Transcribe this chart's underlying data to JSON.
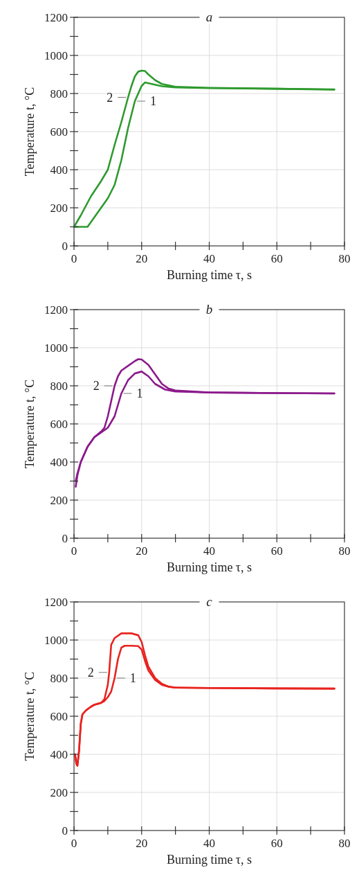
{
  "chart_data": [
    {
      "type": "line",
      "title": "a",
      "xlabel": "Burning time τ, s",
      "ylabel": "Temperature t, °C",
      "xlim": [
        0,
        80
      ],
      "ylim": [
        0,
        1200
      ],
      "xticks": [
        0,
        {
          "value": 10,
          "label": null
        },
        20,
        {
          "value": 30,
          "label": null
        },
        40,
        {
          "value": 50,
          "label": null
        },
        60,
        {
          "value": 70,
          "label": null
        },
        80
      ],
      "yticks": [
        0,
        {
          "value": 100,
          "label": null
        },
        200,
        {
          "value": 300,
          "label": null
        },
        400,
        {
          "value": 500,
          "label": null
        },
        600,
        {
          "value": 700,
          "label": null
        },
        800,
        {
          "value": 900,
          "label": null
        },
        1000,
        {
          "value": 1100,
          "label": null
        },
        1200
      ],
      "grid": true,
      "line_style": "solid",
      "series": [
        {
          "name": "1",
          "color": "#2e9a2e",
          "x": [
            0,
            2,
            4,
            6,
            8,
            10,
            12,
            14,
            16,
            18,
            20,
            21,
            23,
            26,
            30,
            40,
            60,
            77
          ],
          "values": [
            100,
            100,
            100,
            150,
            200,
            250,
            320,
            450,
            620,
            760,
            840,
            858,
            850,
            838,
            832,
            828,
            825,
            820
          ]
        },
        {
          "name": "2",
          "color": "#2e9a2e",
          "x": [
            0,
            2,
            5,
            8,
            10,
            12,
            14,
            16,
            17,
            18,
            19,
            20,
            21,
            22,
            24,
            26,
            30,
            40,
            60,
            77
          ],
          "values": [
            100,
            160,
            260,
            340,
            400,
            530,
            650,
            780,
            840,
            890,
            915,
            920,
            918,
            900,
            870,
            850,
            835,
            830,
            825,
            822
          ]
        }
      ]
    },
    {
      "type": "line",
      "title": "b",
      "xlabel": "Burning time τ, s",
      "ylabel": "Temperature t, °C",
      "xlim": [
        0,
        80
      ],
      "ylim": [
        0,
        1200
      ],
      "xticks": [
        0,
        {
          "value": 10,
          "label": null
        },
        20,
        {
          "value": 30,
          "label": null
        },
        40,
        {
          "value": 50,
          "label": null
        },
        60,
        {
          "value": 70,
          "label": null
        },
        80
      ],
      "yticks": [
        0,
        {
          "value": 100,
          "label": null
        },
        200,
        {
          "value": 300,
          "label": null
        },
        400,
        {
          "value": 500,
          "label": null
        },
        600,
        {
          "value": 700,
          "label": null
        },
        800,
        {
          "value": 900,
          "label": null
        },
        1000,
        {
          "value": 1100,
          "label": null
        },
        1200
      ],
      "grid": true,
      "line_style": "solid",
      "series": [
        {
          "name": "1",
          "color": "#8b1a8b",
          "x": [
            0.5,
            1,
            2,
            4,
            6,
            8,
            10,
            12,
            14,
            16,
            18,
            20,
            22,
            24,
            27,
            30,
            40,
            60,
            77
          ],
          "values": [
            270,
            330,
            400,
            480,
            530,
            555,
            580,
            640,
            760,
            830,
            865,
            875,
            850,
            810,
            780,
            770,
            765,
            762,
            760
          ]
        },
        {
          "name": "2",
          "color": "#8b1a8b",
          "x": [
            0.5,
            1,
            2,
            4,
            6,
            8,
            9,
            10,
            11,
            12,
            13,
            14,
            16,
            18,
            19,
            20,
            22,
            24,
            26,
            28,
            30,
            40,
            60,
            77
          ],
          "values": [
            300,
            340,
            400,
            480,
            530,
            560,
            580,
            640,
            720,
            800,
            850,
            880,
            905,
            930,
            940,
            938,
            910,
            860,
            810,
            785,
            775,
            765,
            762,
            760
          ]
        }
      ]
    },
    {
      "type": "line",
      "title": "c",
      "xlabel": "Burning time τ, s",
      "ylabel": "Temperature t, °C",
      "xlim": [
        0,
        80
      ],
      "ylim": [
        0,
        1200
      ],
      "xticks": [
        0,
        {
          "value": 10,
          "label": null
        },
        20,
        {
          "value": 30,
          "label": null
        },
        40,
        {
          "value": 50,
          "label": null
        },
        60,
        {
          "value": 70,
          "label": null
        },
        80
      ],
      "yticks": [
        0,
        {
          "value": 100,
          "label": null
        },
        200,
        {
          "value": 300,
          "label": null
        },
        400,
        {
          "value": 500,
          "label": null
        },
        600,
        {
          "value": 700,
          "label": null
        },
        800,
        {
          "value": 900,
          "label": null
        },
        1000,
        {
          "value": 1100,
          "label": null
        },
        1200
      ],
      "grid": true,
      "line_style": "solid",
      "series": [
        {
          "name": "1",
          "color": "#e8231f",
          "x": [
            0.3,
            0.7,
            1,
            1.5,
            2,
            2.5,
            3.5,
            5,
            6,
            7,
            8,
            9,
            10,
            11,
            12,
            13,
            14,
            15,
            17,
            19,
            20,
            21,
            22,
            24,
            26,
            28,
            30,
            40,
            60,
            77
          ],
          "values": [
            400,
            350,
            340,
            420,
            560,
            610,
            630,
            650,
            660,
            665,
            670,
            680,
            700,
            730,
            800,
            900,
            960,
            970,
            970,
            968,
            950,
            890,
            840,
            790,
            765,
            755,
            750,
            748,
            746,
            745
          ]
        },
        {
          "name": "2",
          "color": "#e8231f",
          "x": [
            0.3,
            0.7,
            1,
            1.5,
            2,
            2.5,
            3.5,
            5,
            6,
            7,
            8,
            9,
            10,
            10.4,
            11,
            12,
            14,
            17,
            19,
            20,
            21,
            22,
            24,
            26,
            28,
            30,
            40,
            60,
            77
          ],
          "values": [
            400,
            350,
            340,
            420,
            560,
            610,
            630,
            650,
            660,
            665,
            670,
            690,
            765,
            830,
            975,
            1010,
            1035,
            1035,
            1025,
            990,
            920,
            860,
            800,
            770,
            755,
            750,
            748,
            746,
            745
          ]
        }
      ]
    }
  ]
}
